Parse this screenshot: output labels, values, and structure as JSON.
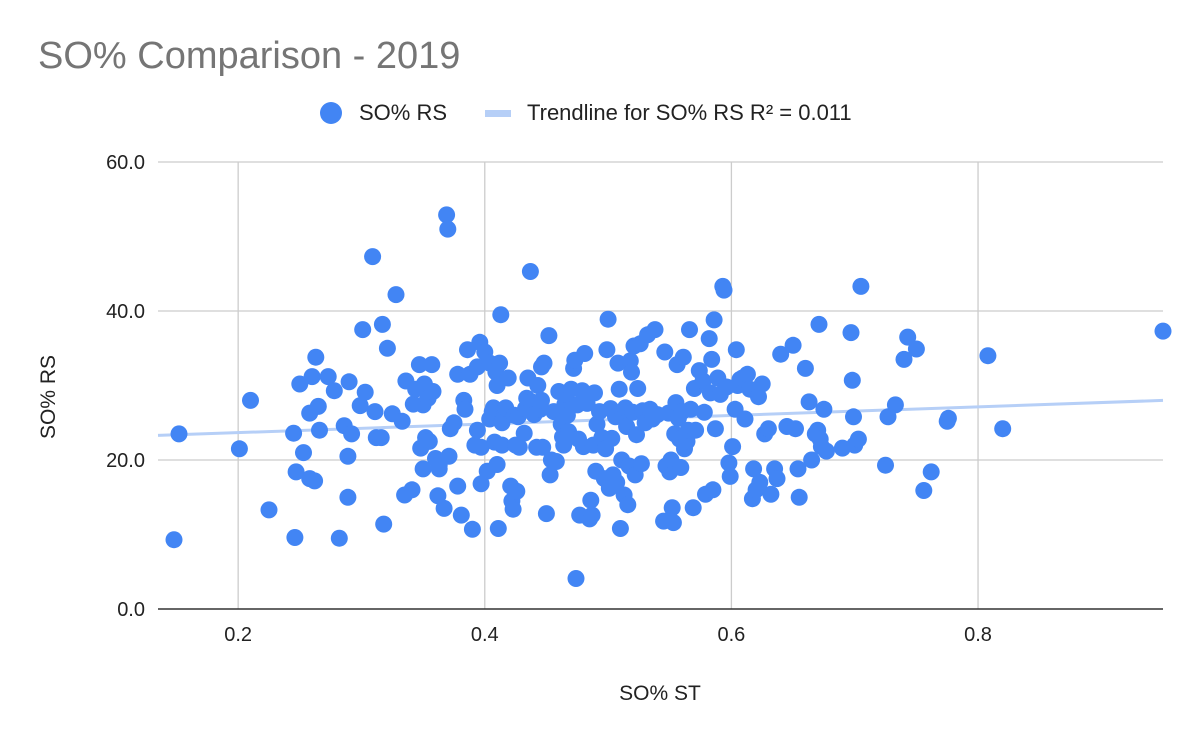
{
  "chart_data": {
    "type": "scatter",
    "title": "SO% Comparison - 2019",
    "xlabel": "SO% ST",
    "ylabel": "SO% RS",
    "xlim": [
      0.135,
      0.95
    ],
    "ylim": [
      0,
      60
    ],
    "x_ticks": [
      "0.2",
      "0.4",
      "0.6",
      "0.8"
    ],
    "x_tick_values": [
      0.2,
      0.4,
      0.6,
      0.8
    ],
    "y_ticks": [
      "0.0",
      "20.0",
      "40.0",
      "60.0"
    ],
    "y_tick_values": [
      0,
      20,
      40,
      60
    ],
    "grid": true,
    "legend_position": "top",
    "colors": {
      "points": "#4285f4",
      "trendline": "#b6cff7",
      "title": "#757575"
    },
    "series": [
      {
        "name": "SO% RS",
        "type": "scatter",
        "points": [
          [
            0.148,
            9.3
          ],
          [
            0.152,
            23.5
          ],
          [
            0.201,
            21.5
          ],
          [
            0.21,
            28.0
          ],
          [
            0.225,
            13.3
          ],
          [
            0.246,
            9.6
          ],
          [
            0.245,
            23.6
          ],
          [
            0.247,
            18.4
          ],
          [
            0.25,
            30.2
          ],
          [
            0.253,
            21.0
          ],
          [
            0.258,
            26.3
          ],
          [
            0.258,
            17.5
          ],
          [
            0.26,
            31.2
          ],
          [
            0.262,
            17.2
          ],
          [
            0.263,
            33.8
          ],
          [
            0.265,
            27.2
          ],
          [
            0.266,
            24.0
          ],
          [
            0.273,
            31.2
          ],
          [
            0.278,
            29.3
          ],
          [
            0.282,
            9.5
          ],
          [
            0.286,
            24.6
          ],
          [
            0.289,
            20.5
          ],
          [
            0.289,
            15.0
          ],
          [
            0.29,
            30.5
          ],
          [
            0.292,
            23.5
          ],
          [
            0.299,
            27.3
          ],
          [
            0.301,
            37.5
          ],
          [
            0.303,
            29.1
          ],
          [
            0.309,
            47.3
          ],
          [
            0.311,
            26.5
          ],
          [
            0.312,
            23.0
          ],
          [
            0.316,
            23.0
          ],
          [
            0.317,
            38.2
          ],
          [
            0.318,
            11.4
          ],
          [
            0.321,
            35.0
          ],
          [
            0.325,
            26.2
          ],
          [
            0.328,
            42.2
          ],
          [
            0.333,
            25.2
          ],
          [
            0.335,
            15.3
          ],
          [
            0.336,
            30.6
          ],
          [
            0.341,
            16.0
          ],
          [
            0.342,
            27.5
          ],
          [
            0.344,
            29.5
          ],
          [
            0.347,
            32.8
          ],
          [
            0.348,
            21.6
          ],
          [
            0.35,
            18.8
          ],
          [
            0.35,
            27.4
          ],
          [
            0.351,
            30.2
          ],
          [
            0.352,
            23.0
          ],
          [
            0.354,
            28.3
          ],
          [
            0.355,
            22.5
          ],
          [
            0.357,
            32.8
          ],
          [
            0.358,
            29.2
          ],
          [
            0.36,
            20.2
          ],
          [
            0.362,
            15.2
          ],
          [
            0.363,
            18.8
          ],
          [
            0.363,
            19.3
          ],
          [
            0.367,
            13.5
          ],
          [
            0.369,
            52.9
          ],
          [
            0.37,
            51.0
          ],
          [
            0.371,
            20.5
          ],
          [
            0.372,
            24.2
          ],
          [
            0.375,
            25.0
          ],
          [
            0.378,
            31.5
          ],
          [
            0.378,
            16.5
          ],
          [
            0.381,
            12.6
          ],
          [
            0.383,
            28.0
          ],
          [
            0.384,
            26.8
          ],
          [
            0.386,
            34.8
          ],
          [
            0.388,
            31.5
          ],
          [
            0.39,
            10.7
          ],
          [
            0.392,
            22.0
          ],
          [
            0.394,
            24.0
          ],
          [
            0.394,
            32.5
          ],
          [
            0.396,
            35.8
          ],
          [
            0.397,
            21.7
          ],
          [
            0.397,
            16.8
          ],
          [
            0.4,
            34.5
          ],
          [
            0.402,
            18.5
          ],
          [
            0.404,
            33.0
          ],
          [
            0.404,
            25.5
          ],
          [
            0.406,
            26.5
          ],
          [
            0.407,
            27.0
          ],
          [
            0.408,
            22.4
          ],
          [
            0.409,
            31.8
          ],
          [
            0.41,
            30.0
          ],
          [
            0.41,
            19.4
          ],
          [
            0.411,
            10.8
          ],
          [
            0.412,
            33.0
          ],
          [
            0.413,
            39.5
          ],
          [
            0.414,
            22.0
          ],
          [
            0.414,
            25.0
          ],
          [
            0.416,
            26.0
          ],
          [
            0.417,
            27.0
          ],
          [
            0.419,
            31.0
          ],
          [
            0.421,
            16.5
          ],
          [
            0.422,
            14.5
          ],
          [
            0.423,
            13.4
          ],
          [
            0.424,
            26.0
          ],
          [
            0.425,
            22.0
          ],
          [
            0.426,
            15.8
          ],
          [
            0.427,
            25.8
          ],
          [
            0.428,
            21.7
          ],
          [
            0.432,
            23.6
          ],
          [
            0.433,
            26.9
          ],
          [
            0.434,
            28.3
          ],
          [
            0.435,
            31.0
          ],
          [
            0.437,
            45.3
          ],
          [
            0.438,
            27.8
          ],
          [
            0.44,
            26.1
          ],
          [
            0.442,
            21.7
          ],
          [
            0.443,
            30.0
          ],
          [
            0.445,
            26.8
          ],
          [
            0.446,
            28.0
          ],
          [
            0.446,
            32.5
          ],
          [
            0.447,
            21.7
          ],
          [
            0.448,
            33.0
          ],
          [
            0.45,
            12.8
          ],
          [
            0.452,
            36.7
          ],
          [
            0.453,
            18.0
          ],
          [
            0.454,
            20.0
          ],
          [
            0.456,
            26.5
          ],
          [
            0.458,
            19.8
          ],
          [
            0.46,
            29.2
          ],
          [
            0.462,
            24.8
          ],
          [
            0.463,
            23.1
          ],
          [
            0.464,
            22.0
          ],
          [
            0.465,
            27.5
          ],
          [
            0.466,
            28.8
          ],
          [
            0.467,
            26.0
          ],
          [
            0.468,
            23.8
          ],
          [
            0.47,
            29.5
          ],
          [
            0.472,
            32.3
          ],
          [
            0.473,
            33.4
          ],
          [
            0.474,
            4.1
          ],
          [
            0.475,
            27.4
          ],
          [
            0.476,
            22.8
          ],
          [
            0.477,
            12.6
          ],
          [
            0.479,
            29.3
          ],
          [
            0.48,
            21.8
          ],
          [
            0.481,
            34.3
          ],
          [
            0.483,
            27.6
          ],
          [
            0.485,
            12.1
          ],
          [
            0.486,
            14.6
          ],
          [
            0.487,
            12.6
          ],
          [
            0.488,
            22.0
          ],
          [
            0.489,
            29.0
          ],
          [
            0.49,
            18.5
          ],
          [
            0.491,
            24.8
          ],
          [
            0.493,
            26.5
          ],
          [
            0.495,
            23.0
          ],
          [
            0.497,
            17.5
          ],
          [
            0.498,
            21.5
          ],
          [
            0.499,
            34.8
          ],
          [
            0.5,
            38.9
          ],
          [
            0.501,
            16.2
          ],
          [
            0.502,
            26.9
          ],
          [
            0.503,
            22.9
          ],
          [
            0.504,
            18.0
          ],
          [
            0.506,
            25.8
          ],
          [
            0.507,
            17.0
          ],
          [
            0.508,
            33.0
          ],
          [
            0.509,
            29.5
          ],
          [
            0.51,
            10.8
          ],
          [
            0.511,
            20.0
          ],
          [
            0.512,
            26.0
          ],
          [
            0.513,
            15.3
          ],
          [
            0.514,
            27.0
          ],
          [
            0.515,
            24.5
          ],
          [
            0.516,
            14.0
          ],
          [
            0.517,
            19.2
          ],
          [
            0.518,
            33.3
          ],
          [
            0.519,
            31.8
          ],
          [
            0.52,
            26.4
          ],
          [
            0.521,
            35.3
          ],
          [
            0.522,
            18.0
          ],
          [
            0.523,
            23.4
          ],
          [
            0.524,
            29.6
          ],
          [
            0.526,
            35.6
          ],
          [
            0.527,
            19.5
          ],
          [
            0.528,
            26.6
          ],
          [
            0.53,
            25.0
          ],
          [
            0.532,
            36.8
          ],
          [
            0.534,
            26.8
          ],
          [
            0.536,
            25.5
          ],
          [
            0.538,
            37.5
          ],
          [
            0.54,
            26.1
          ],
          [
            0.545,
            11.8
          ],
          [
            0.546,
            34.5
          ],
          [
            0.547,
            19.2
          ],
          [
            0.549,
            26.3
          ],
          [
            0.55,
            18.4
          ],
          [
            0.551,
            20.0
          ],
          [
            0.552,
            13.6
          ],
          [
            0.553,
            11.6
          ],
          [
            0.554,
            23.5
          ],
          [
            0.555,
            27.7
          ],
          [
            0.556,
            32.8
          ],
          [
            0.557,
            25.6
          ],
          [
            0.558,
            22.8
          ],
          [
            0.559,
            19.0
          ],
          [
            0.56,
            26.5
          ],
          [
            0.561,
            33.8
          ],
          [
            0.562,
            21.5
          ],
          [
            0.564,
            22.5
          ],
          [
            0.565,
            24.0
          ],
          [
            0.566,
            37.5
          ],
          [
            0.567,
            26.8
          ],
          [
            0.569,
            13.6
          ],
          [
            0.57,
            29.6
          ],
          [
            0.571,
            24.0
          ],
          [
            0.574,
            32.0
          ],
          [
            0.577,
            30.6
          ],
          [
            0.578,
            26.4
          ],
          [
            0.579,
            15.4
          ],
          [
            0.582,
            36.3
          ],
          [
            0.583,
            29.0
          ],
          [
            0.584,
            33.5
          ],
          [
            0.585,
            16.0
          ],
          [
            0.586,
            38.8
          ],
          [
            0.587,
            24.2
          ],
          [
            0.589,
            31.0
          ],
          [
            0.591,
            28.8
          ],
          [
            0.593,
            43.3
          ],
          [
            0.594,
            42.8
          ],
          [
            0.596,
            29.8
          ],
          [
            0.598,
            19.6
          ],
          [
            0.599,
            17.8
          ],
          [
            0.601,
            21.8
          ],
          [
            0.603,
            26.8
          ],
          [
            0.604,
            34.8
          ],
          [
            0.605,
            30.0
          ],
          [
            0.607,
            30.8
          ],
          [
            0.609,
            31.0
          ],
          [
            0.611,
            25.5
          ],
          [
            0.613,
            31.5
          ],
          [
            0.615,
            29.5
          ],
          [
            0.617,
            14.8
          ],
          [
            0.618,
            18.8
          ],
          [
            0.62,
            16.0
          ],
          [
            0.622,
            28.5
          ],
          [
            0.623,
            17.0
          ],
          [
            0.625,
            30.2
          ],
          [
            0.627,
            23.5
          ],
          [
            0.63,
            24.2
          ],
          [
            0.632,
            15.4
          ],
          [
            0.635,
            18.8
          ],
          [
            0.637,
            17.5
          ],
          [
            0.64,
            34.2
          ],
          [
            0.645,
            24.5
          ],
          [
            0.65,
            35.4
          ],
          [
            0.652,
            24.2
          ],
          [
            0.654,
            18.8
          ],
          [
            0.655,
            15.0
          ],
          [
            0.66,
            32.3
          ],
          [
            0.663,
            27.8
          ],
          [
            0.665,
            20.0
          ],
          [
            0.668,
            23.5
          ],
          [
            0.67,
            24.0
          ],
          [
            0.671,
            38.2
          ],
          [
            0.672,
            22.8
          ],
          [
            0.673,
            21.8
          ],
          [
            0.675,
            26.8
          ],
          [
            0.677,
            21.2
          ],
          [
            0.69,
            21.6
          ],
          [
            0.697,
            37.1
          ],
          [
            0.698,
            30.7
          ],
          [
            0.699,
            25.8
          ],
          [
            0.7,
            22.0
          ],
          [
            0.703,
            22.8
          ],
          [
            0.705,
            43.3
          ],
          [
            0.725,
            19.3
          ],
          [
            0.727,
            25.8
          ],
          [
            0.733,
            27.4
          ],
          [
            0.74,
            33.5
          ],
          [
            0.743,
            36.5
          ],
          [
            0.75,
            34.9
          ],
          [
            0.756,
            15.9
          ],
          [
            0.762,
            18.4
          ],
          [
            0.775,
            25.2
          ],
          [
            0.776,
            25.6
          ],
          [
            0.808,
            34.0
          ],
          [
            0.82,
            24.2
          ],
          [
            0.95,
            37.3
          ]
        ]
      },
      {
        "name": "Trendline for SO% RS R² = 0.011",
        "type": "trendline",
        "x": [
          0.135,
          0.95
        ],
        "y": [
          23.3,
          28.0
        ]
      }
    ]
  }
}
